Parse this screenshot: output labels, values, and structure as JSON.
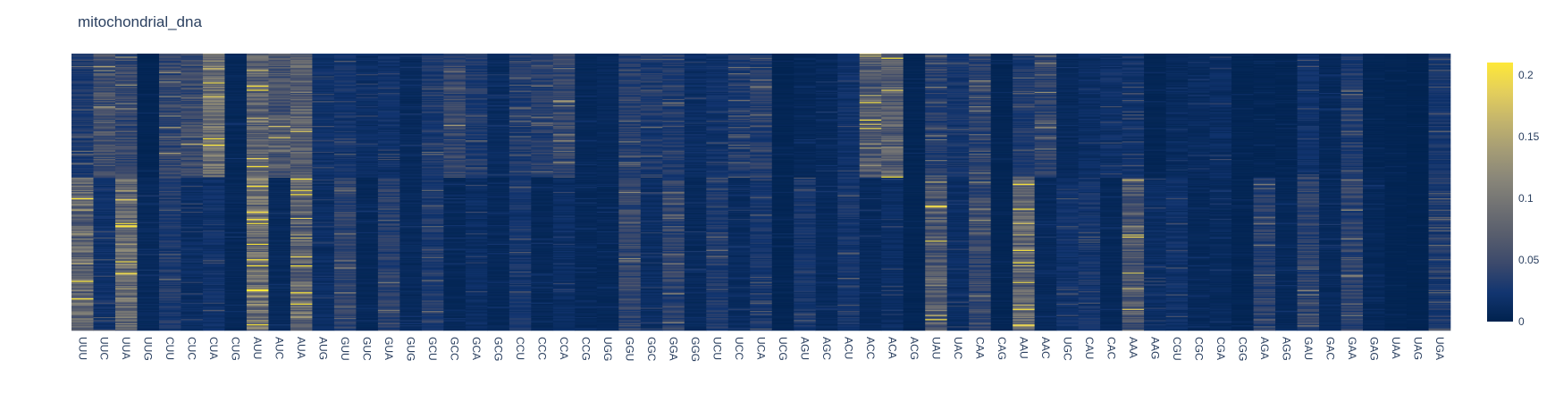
{
  "chart_data": {
    "type": "heatmap",
    "title": "mitochondrial_dna",
    "colorscale": "cividis",
    "colorscale_stops": [
      "#00224e",
      "#123570",
      "#3b496c",
      "#575d6d",
      "#707173",
      "#8a8779",
      "#a69d75",
      "#c4b56c",
      "#e4cf5b",
      "#fee838"
    ],
    "zlim": [
      0,
      0.21
    ],
    "colorbar_ticks": [
      {
        "value": 0,
        "label": "0"
      },
      {
        "value": 0.05,
        "label": "0.05"
      },
      {
        "value": 0.1,
        "label": "0.1"
      },
      {
        "value": 0.15,
        "label": "0.15"
      },
      {
        "value": 0.2,
        "label": "0.2"
      }
    ],
    "categories": [
      "UUU",
      "UUC",
      "UUA",
      "UUG",
      "CUU",
      "CUC",
      "CUA",
      "CUG",
      "AUU",
      "AUC",
      "AUA",
      "AUG",
      "GUU",
      "GUC",
      "GUA",
      "GUG",
      "GCU",
      "GCC",
      "GCA",
      "GCG",
      "CCU",
      "CCC",
      "CCA",
      "CCG",
      "UGG",
      "GGU",
      "GGC",
      "GGA",
      "GGG",
      "UCU",
      "UCC",
      "UCA",
      "UCG",
      "AGU",
      "AGC",
      "ACU",
      "ACC",
      "ACA",
      "ACG",
      "UAU",
      "UAC",
      "CAA",
      "CAG",
      "AAU",
      "AAC",
      "UGC",
      "CAU",
      "CAC",
      "AAA",
      "AAG",
      "CGU",
      "CGC",
      "CGA",
      "CGG",
      "AGA",
      "AGG",
      "GAU",
      "GAC",
      "GAA",
      "GAG",
      "UAA",
      "UAG",
      "UGA"
    ],
    "row_groups": [
      {
        "rows": 120,
        "mean": [
          0.03,
          0.055,
          0.045,
          0.005,
          0.045,
          0.05,
          0.095,
          0.008,
          0.075,
          0.06,
          0.07,
          0.02,
          0.025,
          0.015,
          0.02,
          0.01,
          0.03,
          0.045,
          0.03,
          0.012,
          0.03,
          0.035,
          0.045,
          0.008,
          0.01,
          0.035,
          0.03,
          0.03,
          0.015,
          0.02,
          0.03,
          0.035,
          0.005,
          0.008,
          0.01,
          0.02,
          0.065,
          0.07,
          0.005,
          0.035,
          0.025,
          0.04,
          0.005,
          0.03,
          0.04,
          0.01,
          0.015,
          0.02,
          0.02,
          0.005,
          0.01,
          0.012,
          0.015,
          0.005,
          0.005,
          0.005,
          0.02,
          0.008,
          0.03,
          0.005,
          0.004,
          0.003,
          0.025
        ]
      },
      {
        "rows": 148,
        "mean": [
          0.08,
          0.02,
          0.085,
          0.01,
          0.03,
          0.015,
          0.02,
          0.008,
          0.095,
          0.01,
          0.075,
          0.015,
          0.04,
          0.008,
          0.035,
          0.01,
          0.03,
          0.008,
          0.015,
          0.008,
          0.025,
          0.008,
          0.015,
          0.008,
          0.008,
          0.045,
          0.015,
          0.04,
          0.01,
          0.03,
          0.012,
          0.025,
          0.005,
          0.025,
          0.01,
          0.025,
          0.01,
          0.015,
          0.005,
          0.065,
          0.015,
          0.045,
          0.005,
          0.08,
          0.01,
          0.02,
          0.025,
          0.008,
          0.065,
          0.015,
          0.02,
          0.008,
          0.01,
          0.005,
          0.035,
          0.008,
          0.04,
          0.01,
          0.04,
          0.008,
          0.004,
          0.003,
          0.03
        ]
      }
    ]
  }
}
